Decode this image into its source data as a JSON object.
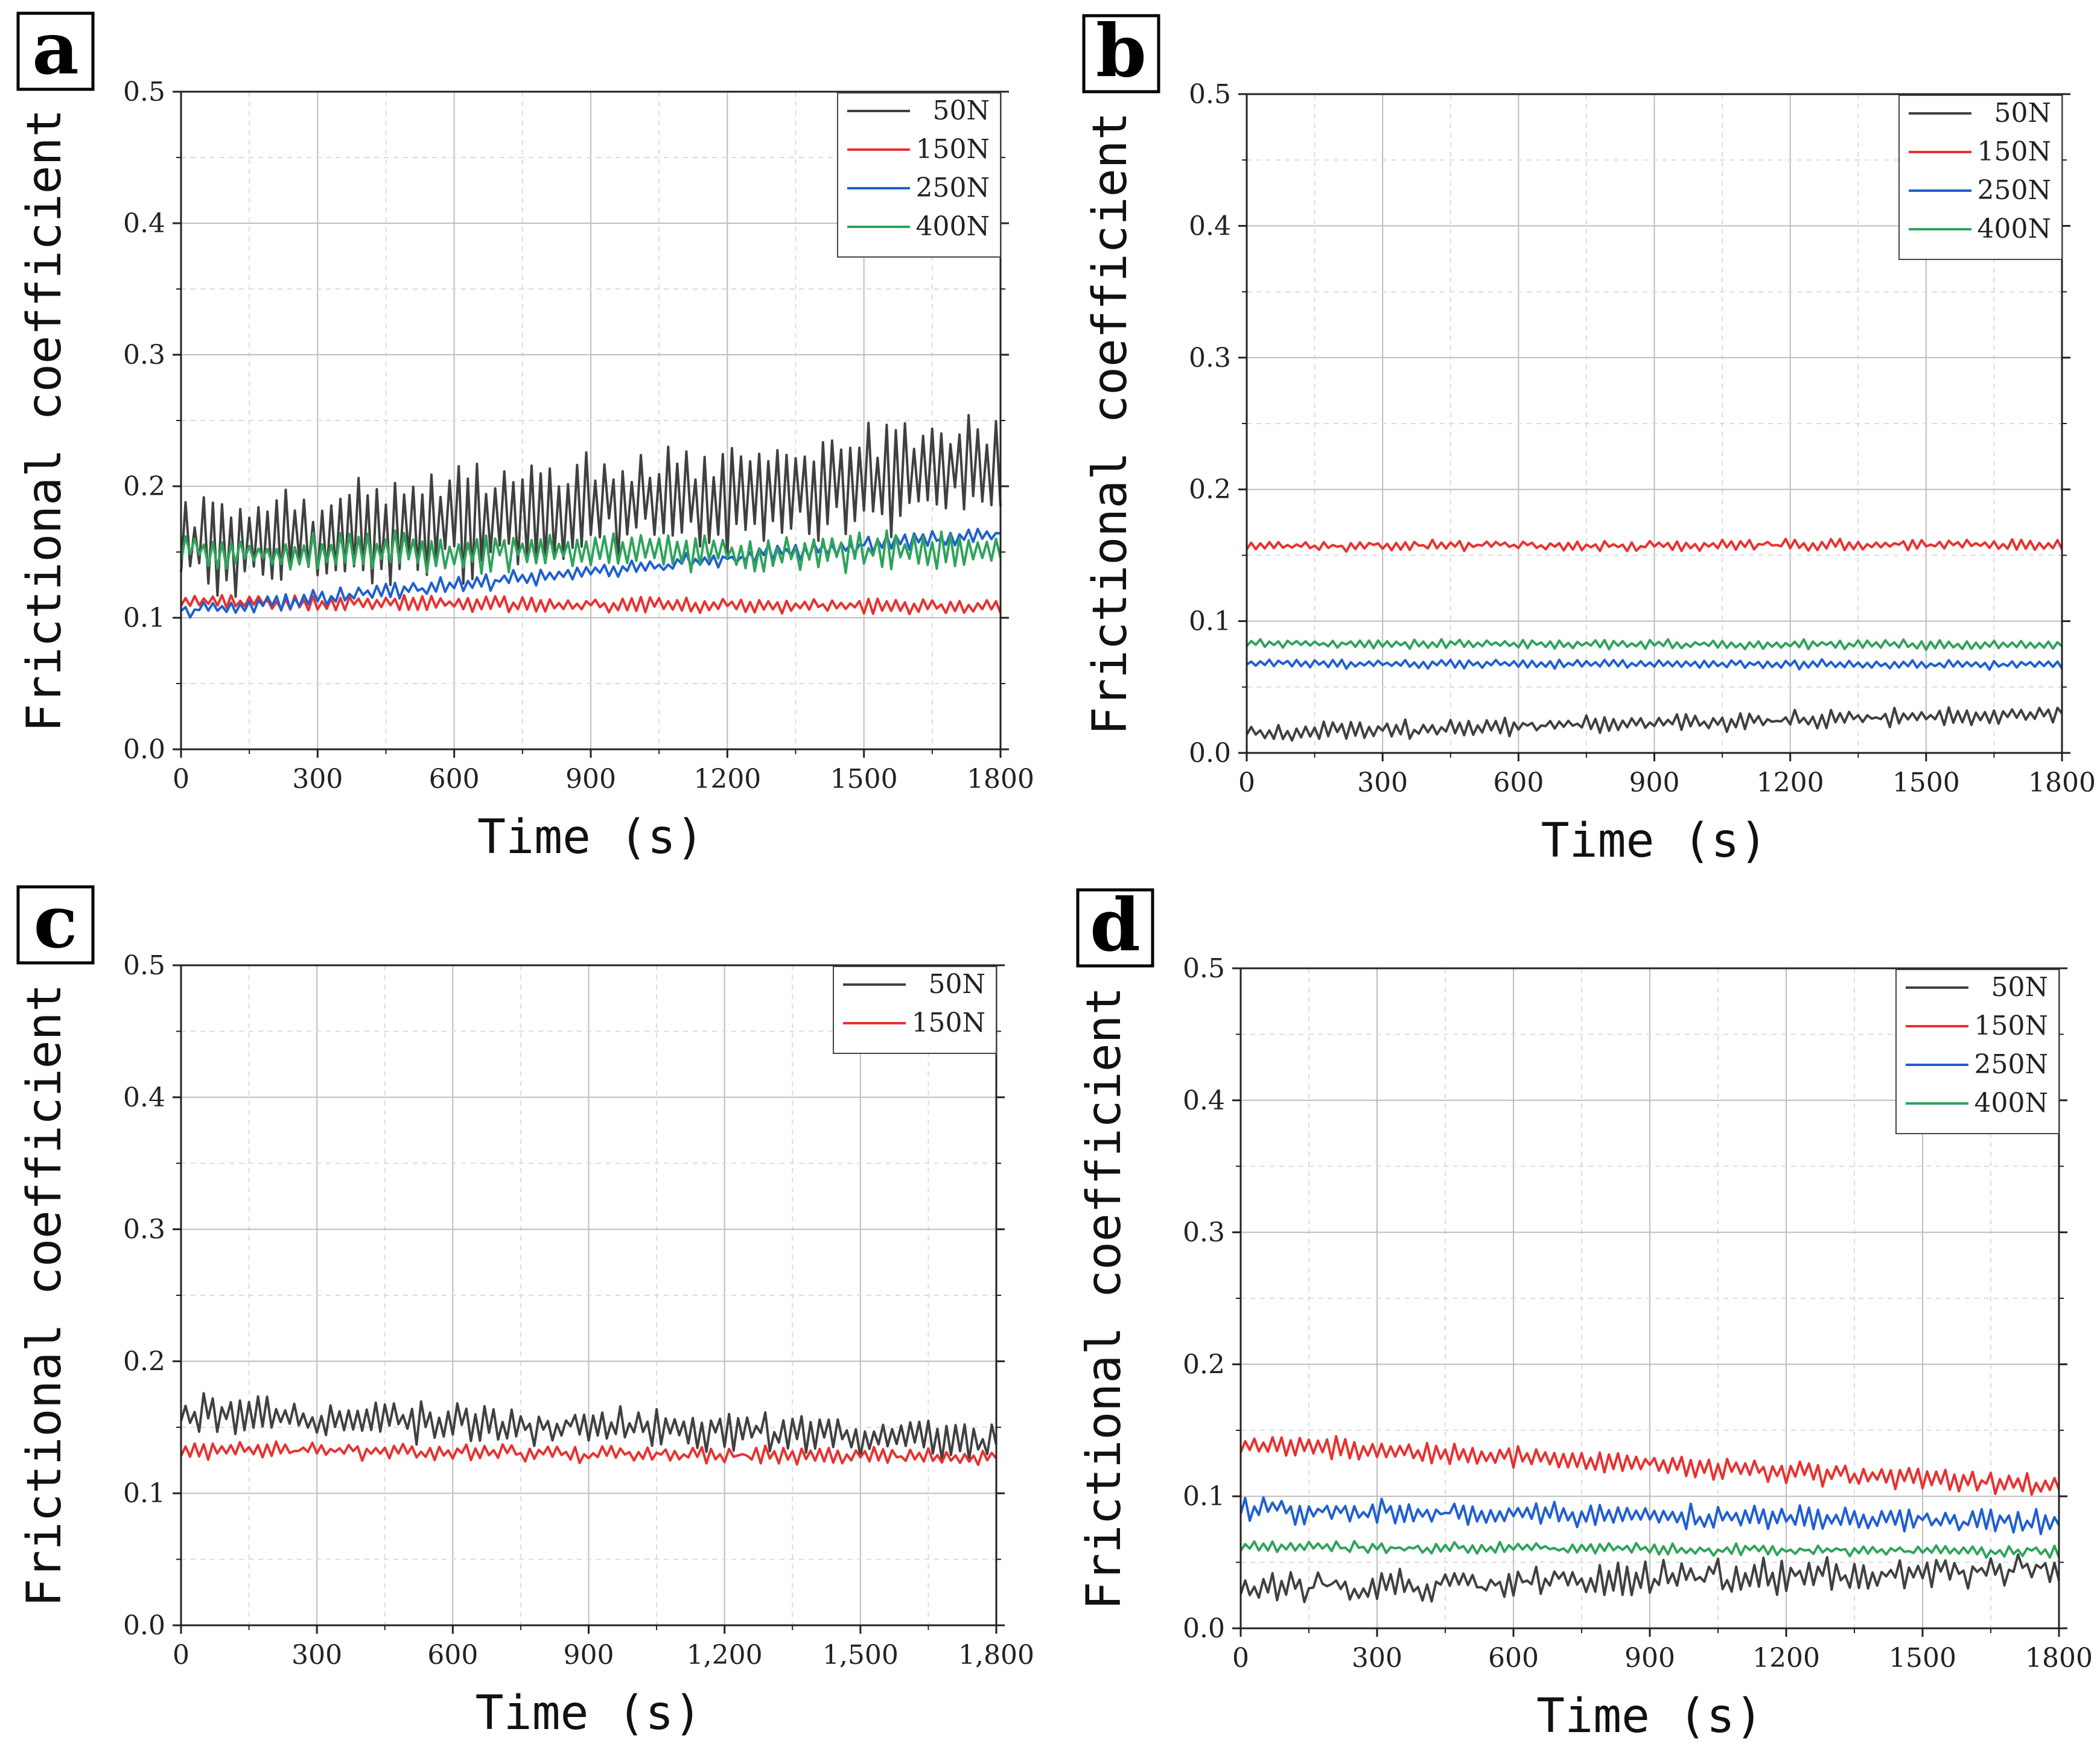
{
  "chart_data": [
    {
      "type": "line",
      "panel_label": "a",
      "xlabel": "Time (s)",
      "ylabel": "Frictional coefficient",
      "xlim": [
        0,
        1800
      ],
      "ylim": [
        0,
        0.5
      ],
      "xticks": [
        "0",
        "300",
        "600",
        "900",
        "1200",
        "1500",
        "1800"
      ],
      "yticks": [
        "0.0",
        "0.1",
        "0.2",
        "0.3",
        "0.4",
        "0.5"
      ],
      "grid": true,
      "legend": "top-right",
      "series": [
        {
          "name": "50N",
          "color": "#404040",
          "start": 0.15,
          "end": 0.215,
          "osc": 0.04,
          "noise": 0.008
        },
        {
          "name": "150N",
          "color": "#e8312f",
          "start": 0.112,
          "end": 0.108,
          "osc": 0.005,
          "noise": 0.002
        },
        {
          "name": "250N",
          "color": "#1f5fd1",
          "start": 0.105,
          "end": 0.165,
          "osc": 0.005,
          "noise": 0.003
        },
        {
          "name": "400N",
          "color": "#2ea35a",
          "start": 0.15,
          "end": 0.15,
          "osc": 0.013,
          "noise": 0.004
        }
      ]
    },
    {
      "type": "line",
      "panel_label": "b",
      "xlabel": "Time (s)",
      "ylabel": "Frictional coefficient",
      "xlim": [
        0,
        1800
      ],
      "ylim": [
        0,
        0.5
      ],
      "xticks": [
        "0",
        "300",
        "600",
        "900",
        "1200",
        "1500",
        "1800"
      ],
      "yticks": [
        "0.0",
        "0.1",
        "0.2",
        "0.3",
        "0.4",
        "0.5"
      ],
      "grid": true,
      "legend": "top-right",
      "series": [
        {
          "name": "50N",
          "color": "#404040",
          "start": 0.015,
          "end": 0.03,
          "osc": 0.005,
          "noise": 0.003
        },
        {
          "name": "150N",
          "color": "#e8312f",
          "start": 0.157,
          "end": 0.158,
          "osc": 0.003,
          "noise": 0.002
        },
        {
          "name": "250N",
          "color": "#1f5fd1",
          "start": 0.068,
          "end": 0.067,
          "osc": 0.003,
          "noise": 0.001
        },
        {
          "name": "400N",
          "color": "#2ea35a",
          "start": 0.083,
          "end": 0.082,
          "osc": 0.003,
          "noise": 0.001
        }
      ]
    },
    {
      "type": "line",
      "panel_label": "c",
      "xlabel": "Time (s)",
      "ylabel": "Frictional coefficient",
      "xlim": [
        0,
        1800
      ],
      "ylim": [
        0,
        0.5
      ],
      "xticks": [
        "0",
        "300",
        "600",
        "900",
        "1,200",
        "1,500",
        "1,800"
      ],
      "yticks": [
        "0.0",
        "0.1",
        "0.2",
        "0.3",
        "0.4",
        "0.5"
      ],
      "grid": true,
      "legend": "top-right",
      "series": [
        {
          "name": "50N",
          "color": "#404040",
          "start": 0.16,
          "end": 0.14,
          "osc": 0.012,
          "noise": 0.006
        },
        {
          "name": "150N",
          "color": "#e8312f",
          "start": 0.133,
          "end": 0.127,
          "osc": 0.005,
          "noise": 0.003
        }
      ]
    },
    {
      "type": "line",
      "panel_label": "d",
      "xlabel": "Time (s)",
      "ylabel": "Frictional coefficient",
      "xlim": [
        0,
        1800
      ],
      "ylim": [
        0,
        0.5
      ],
      "xticks": [
        "0",
        "300",
        "600",
        "900",
        "1200",
        "1500",
        "1800"
      ],
      "yticks": [
        "0.0",
        "0.1",
        "0.2",
        "0.3",
        "0.4",
        "0.5"
      ],
      "grid": true,
      "legend": "top-right",
      "series": [
        {
          "name": "50N",
          "color": "#404040",
          "start": 0.03,
          "end": 0.045,
          "osc": 0.008,
          "noise": 0.007
        },
        {
          "name": "150N",
          "color": "#e8312f",
          "start": 0.14,
          "end": 0.108,
          "osc": 0.007,
          "noise": 0.003
        },
        {
          "name": "250N",
          "color": "#1f5fd1",
          "start": 0.09,
          "end": 0.08,
          "osc": 0.007,
          "noise": 0.004
        },
        {
          "name": "400N",
          "color": "#2ea35a",
          "start": 0.062,
          "end": 0.058,
          "osc": 0.003,
          "noise": 0.002
        }
      ]
    }
  ]
}
